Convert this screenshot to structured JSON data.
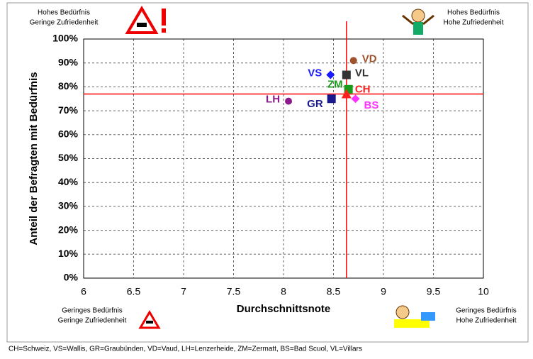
{
  "chart_data": {
    "type": "scatter",
    "x_label": "Durchschnittsnote",
    "y_label": "Anteil der Befragten mit Bedürfnis",
    "xlim": [
      6,
      10
    ],
    "xticks": [
      6,
      6.5,
      7,
      7.5,
      8,
      8.5,
      9,
      9.5,
      10
    ],
    "ylim": [
      0,
      100
    ],
    "yticks": [
      {
        "value": 0,
        "label": "0%"
      },
      {
        "value": 10,
        "label": "10%"
      },
      {
        "value": 20,
        "label": "20%"
      },
      {
        "value": 30,
        "label": "30%"
      },
      {
        "value": 40,
        "label": "40%"
      },
      {
        "value": 50,
        "label": "50%"
      },
      {
        "value": 60,
        "label": "60%"
      },
      {
        "value": 70,
        "label": "70%"
      },
      {
        "value": 80,
        "label": "80%"
      },
      {
        "value": 90,
        "label": "90%"
      },
      {
        "value": 100,
        "label": "100%"
      }
    ],
    "grid": true,
    "reference_lines": {
      "x": 8.63,
      "y": 77,
      "color": "#ff0000"
    },
    "series": [
      {
        "name": "VD",
        "color": "#a0522d",
        "marker": "circle",
        "x": [
          8.7
        ],
        "values": [
          91
        ]
      },
      {
        "name": "VL",
        "color": "#333333",
        "marker": "square",
        "x": [
          8.63
        ],
        "values": [
          85
        ]
      },
      {
        "name": "VS",
        "color": "#1a1aff",
        "marker": "diamond",
        "x": [
          8.47
        ],
        "values": [
          85
        ]
      },
      {
        "name": "ZM",
        "color": "#1a9a1a",
        "marker": "square",
        "x": [
          8.65
        ],
        "values": [
          79
        ]
      },
      {
        "name": "CH",
        "color": "#ff2020",
        "marker": "triangle",
        "x": [
          8.63
        ],
        "values": [
          77
        ]
      },
      {
        "name": "LH",
        "color": "#8b1a8b",
        "marker": "circle",
        "x": [
          8.05
        ],
        "values": [
          74
        ]
      },
      {
        "name": "GR",
        "color": "#1a1a8b",
        "marker": "square",
        "x": [
          8.48
        ],
        "values": [
          75
        ]
      },
      {
        "name": "BS",
        "color": "#ff33ff",
        "marker": "diamond",
        "x": [
          8.72
        ],
        "values": [
          75
        ]
      }
    ],
    "annotations": [
      [
        "Hohes Bedürfnis",
        "Geringe Zufriedenheit"
      ],
      [
        "Hohes Bedürfnis",
        "Hohe Zufriedenheit"
      ],
      [
        "Geringes Bedürfnis",
        "Geringe Zufriedenheit"
      ],
      [
        "Geringes Bedürfnis",
        "Hohe Zufriedenheit"
      ]
    ],
    "footnote": "CH=Schweiz, VS=Wallis, GR=Graubünden, VD=Vaud, LH=Lenzerheide, ZM=Zermatt, BS=Bad Scuol, VL=Villars"
  }
}
